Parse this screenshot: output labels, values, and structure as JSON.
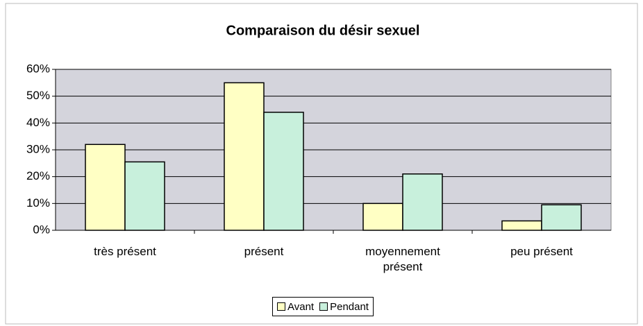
{
  "chart_data": {
    "type": "bar",
    "title": "Comparaison  du désir sexuel",
    "categories": [
      "très présent",
      "présent",
      "moyennement présent",
      "peu présent"
    ],
    "series": [
      {
        "name": "Avant",
        "color": "#ffffc4",
        "values": [
          32,
          55,
          10,
          3.5
        ]
      },
      {
        "name": "Pendant",
        "color": "#c8f0dc",
        "values": [
          25.5,
          44,
          21,
          9.5
        ]
      }
    ],
    "ylim": [
      0,
      60
    ],
    "yticks": [
      {
        "value": 0,
        "label": "0%"
      },
      {
        "value": 10,
        "label": "10%"
      },
      {
        "value": 20,
        "label": "20%"
      },
      {
        "value": 30,
        "label": "30%"
      },
      {
        "value": 40,
        "label": "40%"
      },
      {
        "value": 50,
        "label": "50%"
      },
      {
        "value": 60,
        "label": "60%"
      }
    ],
    "grid": true,
    "legend": "bottom"
  }
}
